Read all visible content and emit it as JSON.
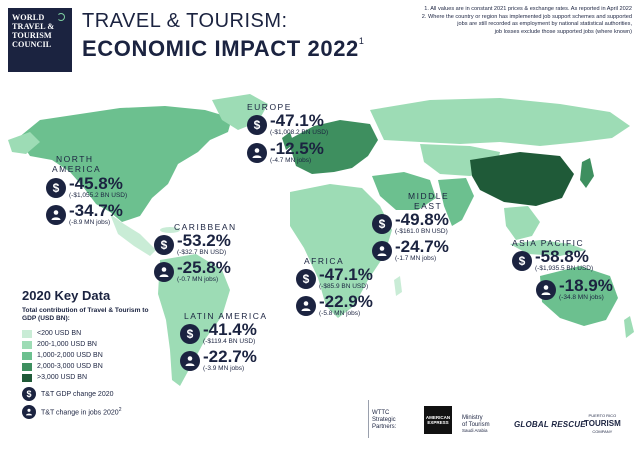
{
  "logo": {
    "lines": [
      "WORLD",
      "TRAVEL &",
      "TOURISM",
      "COUNCIL"
    ]
  },
  "title": {
    "line1": "TRAVEL & TOURISM:",
    "line2": "ECONOMIC IMPACT 2022",
    "sup": "1"
  },
  "notes": {
    "note1": "1. All values are in constant 2021 prices & exchange rates. As reported in April 2022",
    "note2": "2. Where the country or region has implemented job support schemes and supported",
    "note3": "jobs are still recorded as employment by national statistical authorities,",
    "note4": "job losses exclude those supported jobs (where known)"
  },
  "regions": {
    "europe": {
      "name": "EUROPE",
      "gdp": "-47.1%",
      "gdp_sub": "(-$1,008.2 BN USD)",
      "jobs": "-12.5%",
      "jobs_sub": "(-4.7 MN jobs)"
    },
    "north_america": {
      "name1": "NORTH",
      "name2": "AMERICA",
      "gdp": "-45.8%",
      "gdp_sub": "(-$1,055.2 BN USD)",
      "jobs": "-34.7%",
      "jobs_sub": "(-8.9 MN jobs)"
    },
    "caribbean": {
      "name": "CARIBBEAN",
      "gdp": "-53.2%",
      "gdp_sub": "(-$32.7 BN USD)",
      "jobs": "-25.8%",
      "jobs_sub": "(-0.7 MN jobs)"
    },
    "latin_america": {
      "name": "LATIN AMERICA",
      "gdp": "-41.4%",
      "gdp_sub": "(-$119.4 BN USD)",
      "jobs": "-22.7%",
      "jobs_sub": "(-3.9 MN jobs)"
    },
    "africa": {
      "name": "AFRICA",
      "gdp": "-47.1%",
      "gdp_sub": "(-$85.9 BN USD)",
      "jobs": "-22.9%",
      "jobs_sub": "(-5.8 MN jobs)"
    },
    "middle_east": {
      "name1": "MIDDLE",
      "name2": "EAST",
      "gdp": "-49.8%",
      "gdp_sub": "(-$161.0 BN USD)",
      "jobs": "-24.7%",
      "jobs_sub": "(-1.7 MN jobs)"
    },
    "asia_pacific": {
      "name": "ASIA PACIFIC",
      "gdp": "-58.8%",
      "gdp_sub": "(-$1,935.5 BN USD)",
      "jobs": "-18.9%",
      "jobs_sub": "(-34.8 MN jobs)"
    }
  },
  "legend": {
    "title": "2020 Key Data",
    "subtitle": "Total contribution of Travel & Tourism to GDP (USD BN):",
    "items": [
      {
        "label": "<200 USD BN",
        "color": "#c9ecd6"
      },
      {
        "label": "200-1,000 USD BN",
        "color": "#9ddcb5"
      },
      {
        "label": "1,000-2,000 USD BN",
        "color": "#6cc08f"
      },
      {
        "label": "2,000-3,000 USD BN",
        "color": "#3e8f5f"
      },
      {
        "label": ">3,000 USD BN",
        "color": "#1f5a38"
      }
    ],
    "gdp_label": "T&T GDP change 2020",
    "jobs_label": "T&T change in jobs 2020",
    "jobs_sup": "2"
  },
  "footer": {
    "partners_label1": "WTTC",
    "partners_label2": "Strategic",
    "partners_label3": "Partners:",
    "amex1": "AMERICAN",
    "amex2": "EXPRESS",
    "ministry1": "Ministry",
    "ministry2": "of Tourism",
    "ministry3": "Saudi Arabia",
    "global_rescue": "GLOBAL RESCUE",
    "prt1": "PUERTO RICO",
    "prt2": "TOURISM",
    "prt3": "COMPANY"
  },
  "icons": {
    "gdp": "dollar-icon",
    "jobs": "person-icon"
  }
}
